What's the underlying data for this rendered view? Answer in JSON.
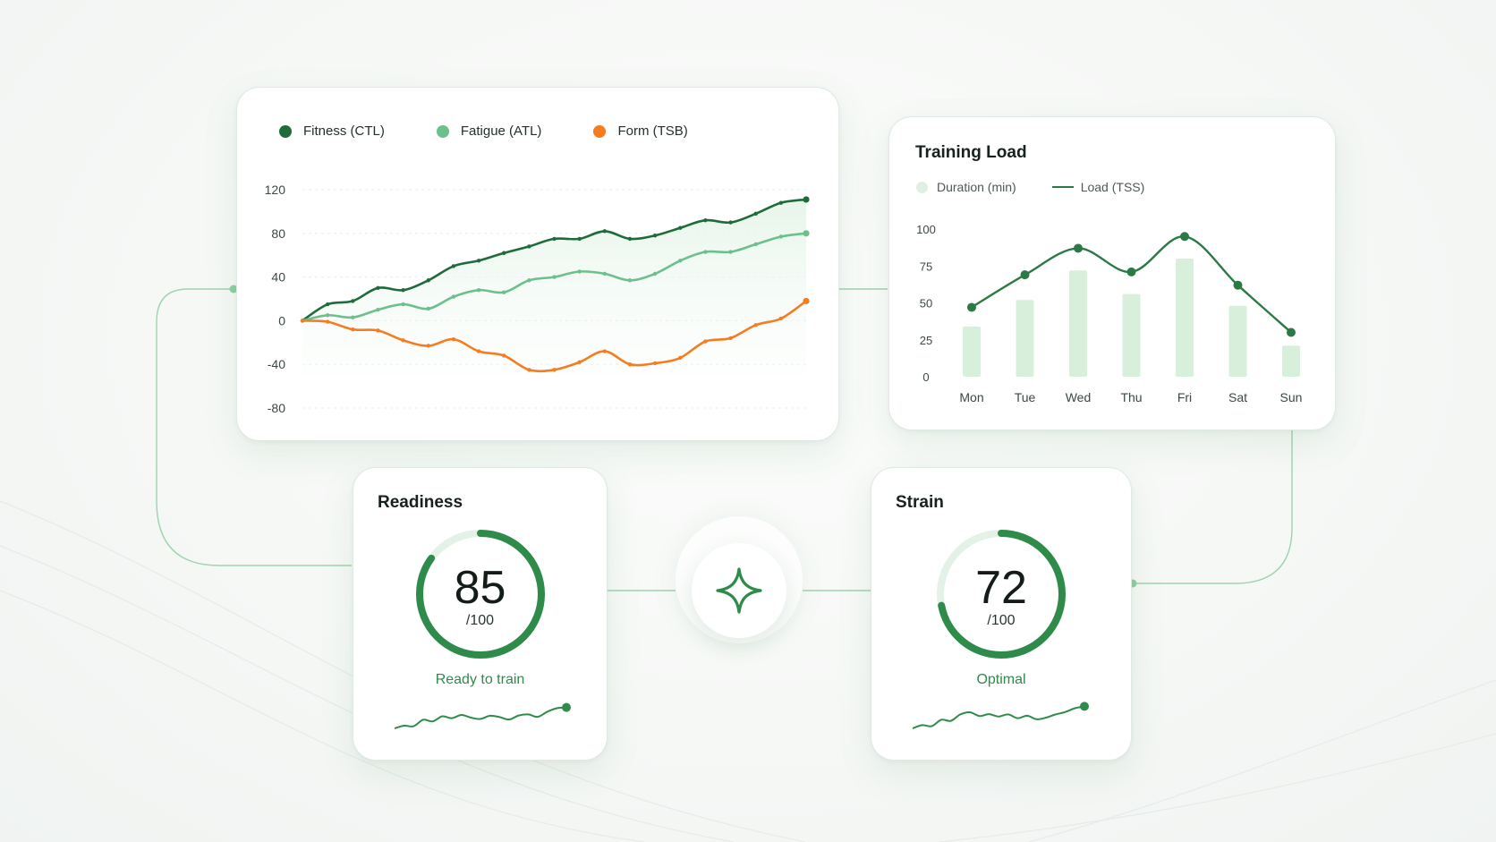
{
  "colors": {
    "fitness": "#1f6b3b",
    "fatigue": "#6cc08b",
    "form": "#f57c1f",
    "accent": "#2e8b4a",
    "bar": "#d8efdc",
    "load_line": "#2b7a45"
  },
  "pmc": {
    "legend": [
      {
        "label": "Fitness (CTL)",
        "color": "#1f6b3b"
      },
      {
        "label": "Fatigue (ATL)",
        "color": "#6cc08b"
      },
      {
        "label": "Form (TSB)",
        "color": "#f57c1f"
      }
    ]
  },
  "training_load": {
    "title": "Training Load",
    "legend_duration": "Duration (min)",
    "legend_load": "Load (TSS)"
  },
  "readiness": {
    "title": "Readiness",
    "value": "85",
    "max": "/100",
    "status": "Ready to train",
    "fraction": 0.85,
    "sparkline": [
      0.1,
      0.2,
      0.18,
      0.42,
      0.36,
      0.55,
      0.48,
      0.6,
      0.5,
      0.45,
      0.57,
      0.52,
      0.43,
      0.58,
      0.62,
      0.53,
      0.72,
      0.85,
      0.88
    ]
  },
  "strain": {
    "title": "Strain",
    "value": "72",
    "max": "/100",
    "status": "Optimal",
    "fraction": 0.72,
    "sparkline": [
      0.1,
      0.22,
      0.18,
      0.42,
      0.38,
      0.62,
      0.7,
      0.56,
      0.63,
      0.54,
      0.62,
      0.48,
      0.57,
      0.44,
      0.5,
      0.62,
      0.71,
      0.85,
      0.92
    ]
  },
  "hub": {
    "icon": "sparkle-icon"
  },
  "chart_data": [
    {
      "type": "line",
      "x": [
        0,
        1,
        2,
        3,
        4,
        5,
        6,
        7,
        8,
        9,
        10,
        11,
        12,
        13,
        14,
        15,
        16,
        17,
        18,
        19,
        20
      ],
      "series": [
        {
          "name": "Fitness (CTL)",
          "values": [
            0,
            15,
            18,
            30,
            28,
            37,
            50,
            55,
            62,
            68,
            75,
            75,
            82,
            75,
            78,
            85,
            92,
            90,
            98,
            108,
            111
          ]
        },
        {
          "name": "Fatigue (ATL)",
          "values": [
            0,
            5,
            3,
            10,
            15,
            11,
            22,
            28,
            26,
            37,
            40,
            45,
            43,
            37,
            43,
            55,
            63,
            63,
            70,
            77,
            80
          ]
        },
        {
          "name": "Form (TSB)",
          "values": [
            0,
            -1,
            -8,
            -9,
            -18,
            -23,
            -17,
            -28,
            -32,
            -45,
            -45,
            -38,
            -28,
            -40,
            -39,
            -34,
            -19,
            -16,
            -4,
            2,
            18
          ]
        }
      ],
      "yticks": [
        120,
        80,
        40,
        0,
        -40,
        -80
      ],
      "ylim": [
        -80,
        120
      ],
      "grid": true,
      "legend": "top-left"
    },
    {
      "type": "bar",
      "title": "Training Load",
      "categories": [
        "Mon",
        "Tue",
        "Wed",
        "Thu",
        "Fri",
        "Sat",
        "Sun"
      ],
      "yticks": [
        100,
        75,
        50,
        25,
        0
      ],
      "ylim": [
        0,
        100
      ],
      "series": [
        {
          "name": "Duration (min)",
          "type": "bar",
          "values": [
            34,
            52,
            72,
            56,
            80,
            48,
            21
          ]
        },
        {
          "name": "Load (TSS)",
          "type": "line",
          "values": [
            47,
            69,
            87,
            71,
            95,
            62,
            30
          ]
        }
      ],
      "legend": "top-left"
    }
  ]
}
